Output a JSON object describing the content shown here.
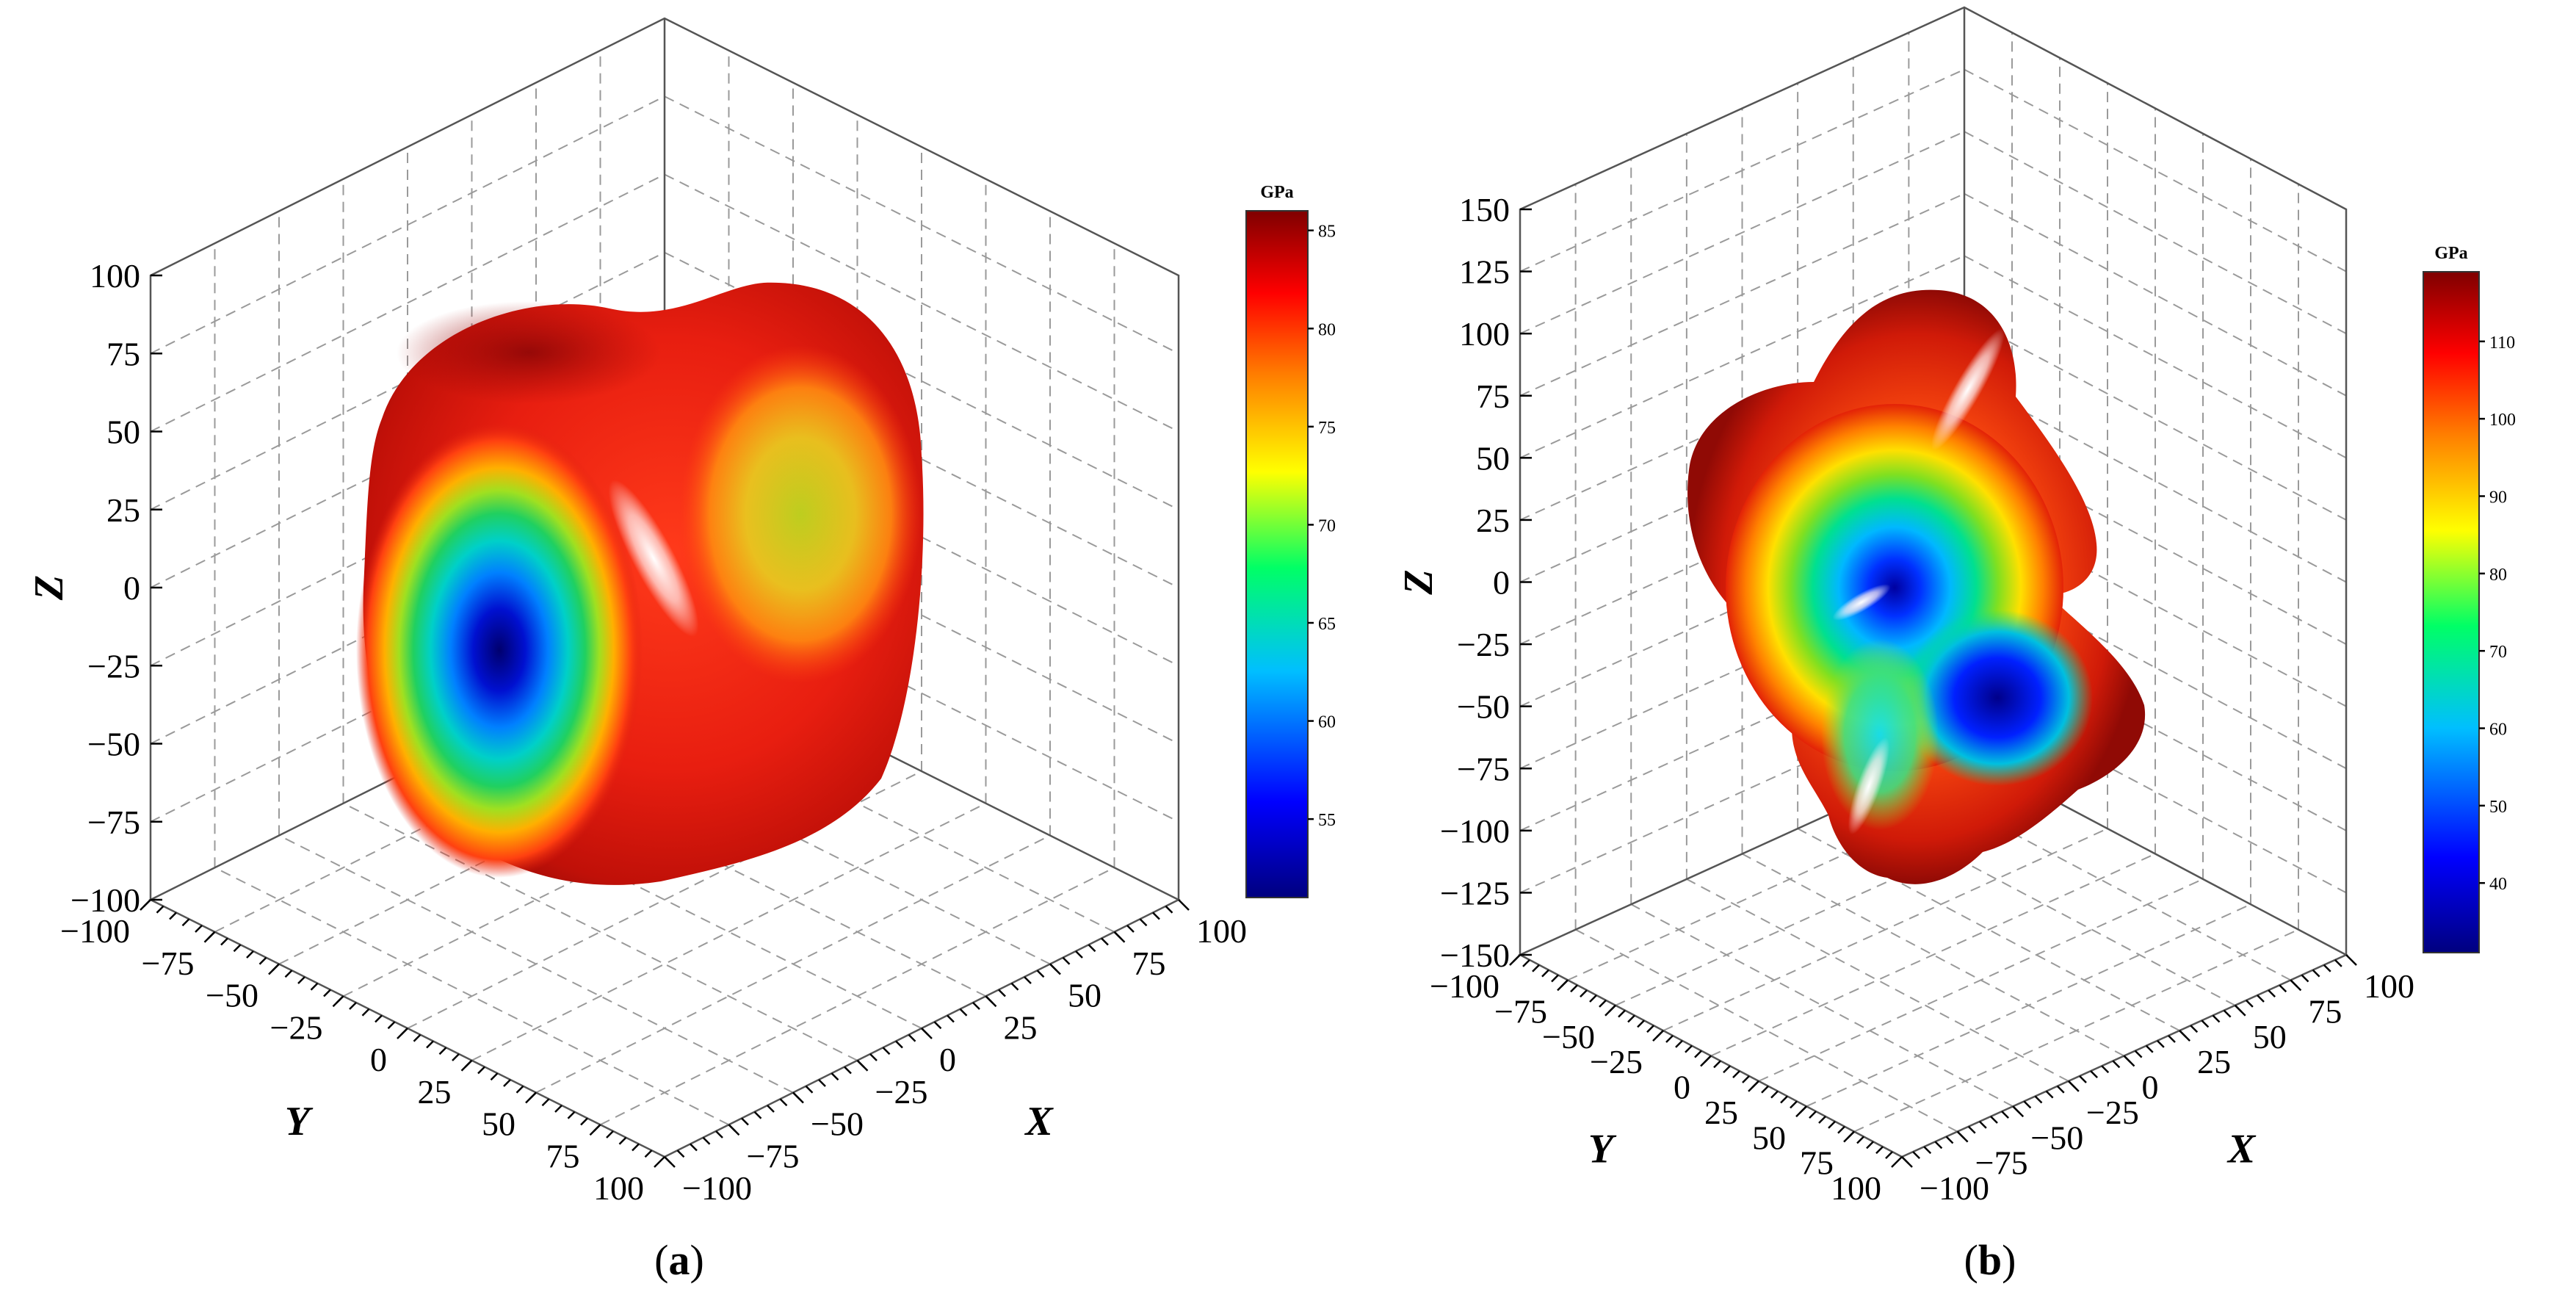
{
  "chart_data": [
    {
      "type": "surface3d",
      "caption_letter": "a",
      "xlabel": "X",
      "ylabel": "Y",
      "zlabel": "Z",
      "xlim": [
        -100,
        100
      ],
      "ylim": [
        -100,
        100
      ],
      "zlim": [
        -100,
        100
      ],
      "xticks": [
        "−100",
        "−75",
        "−50",
        "−25",
        "0",
        "25",
        "50",
        "75",
        "100"
      ],
      "yticks": [
        "−100",
        "−75",
        "−50",
        "−25",
        "0",
        "25",
        "50",
        "75",
        "100"
      ],
      "zticks": [
        "−100",
        "−75",
        "−50",
        "−25",
        "0",
        "25",
        "50",
        "75",
        "100"
      ],
      "grid": true,
      "colorbar": {
        "title": "GPa",
        "min": 51,
        "max": 86,
        "ticks": [
          "55",
          "60",
          "65",
          "70",
          "75",
          "80",
          "85"
        ],
        "tick_values": [
          55,
          60,
          65,
          70,
          75,
          80,
          85
        ]
      }
    },
    {
      "type": "surface3d",
      "caption_letter": "b",
      "xlabel": "X",
      "ylabel": "Y",
      "zlabel": "Z",
      "xlim": [
        -100,
        100
      ],
      "ylim": [
        -100,
        100
      ],
      "zlim": [
        -150,
        150
      ],
      "xticks": [
        "−100",
        "−75",
        "−50",
        "−25",
        "0",
        "25",
        "50",
        "75",
        "100"
      ],
      "yticks": [
        "−100",
        "−75",
        "−50",
        "−25",
        "0",
        "25",
        "50",
        "75",
        "100"
      ],
      "zticks": [
        "−150",
        "−125",
        "−100",
        "−75",
        "−50",
        "−25",
        "0",
        "25",
        "50",
        "75",
        "100",
        "125",
        "150"
      ],
      "grid": true,
      "colorbar": {
        "title": "GPa",
        "min": 31,
        "max": 119,
        "ticks": [
          "40",
          "50",
          "60",
          "70",
          "80",
          "90",
          "100",
          "110"
        ],
        "tick_values": [
          40,
          50,
          60,
          70,
          80,
          90,
          100,
          110
        ]
      }
    }
  ],
  "colors": {
    "jet_stops": [
      "#00007f",
      "#0000ff",
      "#00bfff",
      "#00ff66",
      "#ffff00",
      "#ff7f00",
      "#ff0000",
      "#7f0000"
    ]
  }
}
